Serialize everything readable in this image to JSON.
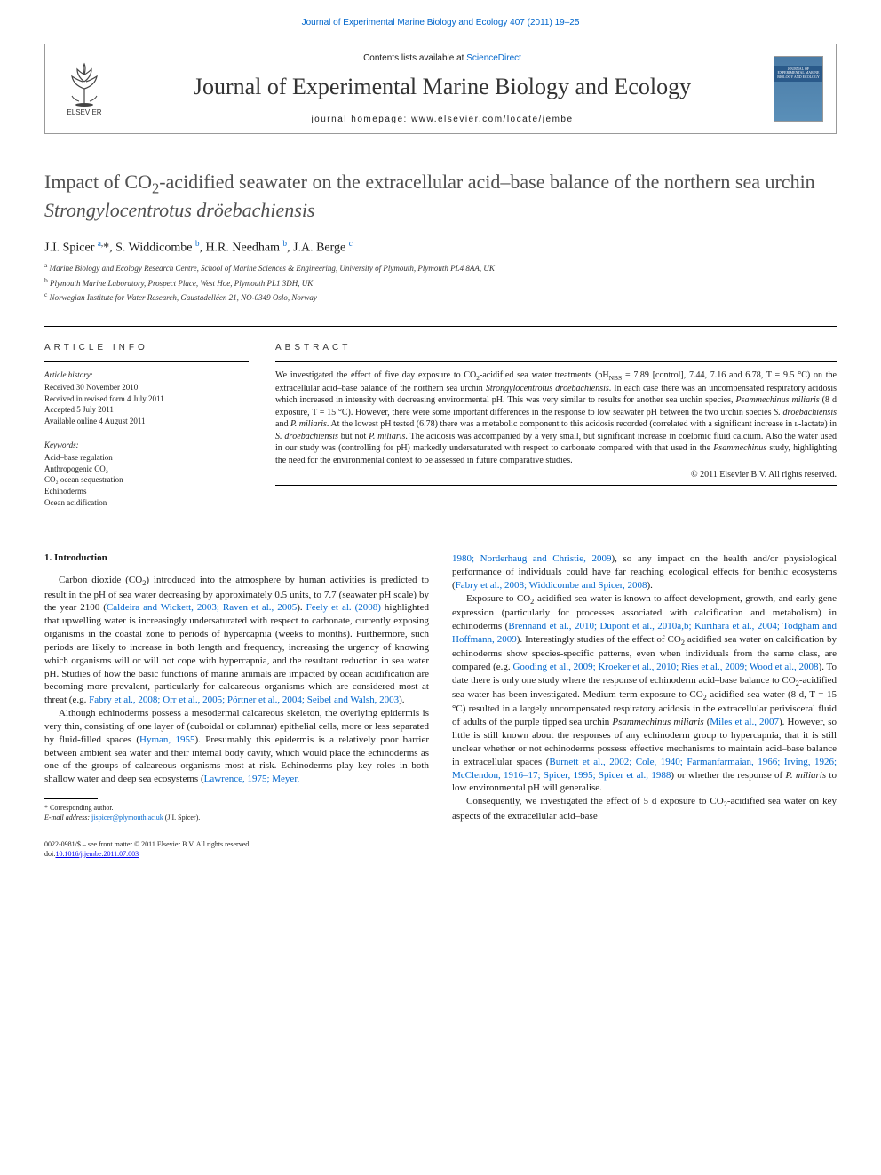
{
  "topLink": "Journal of Experimental Marine Biology and Ecology 407 (2011) 19–25",
  "header": {
    "contentsPrefix": "Contents lists available at ",
    "contentsLink": "ScienceDirect",
    "journalName": "Journal of Experimental Marine Biology and Ecology",
    "homepagePrefix": "journal homepage: ",
    "homepageLink": "www.elsevier.com/locate/jembe",
    "elsevierLabel": "ELSEVIER",
    "coverText": "JOURNAL OF EXPERIMENTAL MARINE BIOLOGY AND ECOLOGY"
  },
  "article": {
    "titleHtml": "Impact of CO<sub>2</sub>-acidified seawater on the extracellular acid–base balance of the northern sea urchin <em>Strongylocentrotus dröebachiensis</em>",
    "authorsHtml": "J.I. Spicer <sup><a href='#'>a</a>,</sup>*, S. Widdicombe <sup><a href='#'>b</a></sup>, H.R. Needham <sup><a href='#'>b</a></sup>, J.A. Berge <sup><a href='#'>c</a></sup>",
    "affiliations": {
      "a": "Marine Biology and Ecology Research Centre, School of Marine Sciences & Engineering, University of Plymouth, Plymouth PL4 8AA, UK",
      "b": "Plymouth Marine Laboratory, Prospect Place, West Hoe, Plymouth PL1 3DH, UK",
      "c": "Norwegian Institute for Water Research, Gaustadelléen 21, NO-0349 Oslo, Norway"
    }
  },
  "sections": {
    "articleInfoHeader": "ARTICLE INFO",
    "abstractHeader": "ABSTRACT",
    "articleHistoryLabel": "Article history:",
    "history": {
      "received": "Received 30 November 2010",
      "revised": "Received in revised form 4 July 2011",
      "accepted": "Accepted 5 July 2011",
      "online": "Available online 4 August 2011"
    },
    "keywordsLabel": "Keywords:",
    "keywords": [
      "Acid–base regulation",
      "Anthropogenic CO₂",
      "CO₂ ocean sequestration",
      "Echinoderms",
      "Ocean acidification"
    ],
    "abstractHtml": "We investigated the effect of five day exposure to CO<sub>2</sub>-acidified sea water treatments (pH<sub>NBS</sub> = 7.89 [control], 7.44, 7.16 and 6.78, T = 9.5 °C) on the extracellular acid–base balance of the northern sea urchin <em>Strongylocentrotus dröebachiensis</em>. In each case there was an uncompensated respiratory acidosis which increased in intensity with decreasing environmental pH. This was very similar to results for another sea urchin species, <em>Psammechinus miliaris</em> (8 d exposure, T = 15 °C). However, there were some important differences in the response to low seawater pH between the two urchin species <em>S. dröebachiensis</em> and <em>P. miliaris</em>. At the lowest pH tested (6.78) there was a metabolic component to this acidosis recorded (correlated with a significant increase in ʟ-lactate) in <em>S. dröebachiensis</em> but not <em>P. miliaris</em>. The acidosis was accompanied by a very small, but significant increase in coelomic fluid calcium. Also the water used in our study was (controlling for pH) markedly undersaturated with respect to carbonate compared with that used in the <em>Psammechinus</em> study, highlighting the need for the environmental context to be assessed in future comparative studies.",
    "copyright": "© 2011 Elsevier B.V. All rights reserved."
  },
  "intro": {
    "heading": "1. Introduction",
    "p1Html": "Carbon dioxide (CO<sub>2</sub>) introduced into the atmosphere by human activities is predicted to result in the pH of sea water decreasing by approximately 0.5 units, to 7.7 (seawater pH scale) by the year 2100 (<a href='#'>Caldeira and Wickett, 2003; Raven et al., 2005</a>). <a href='#'>Feely et al. (2008)</a> highlighted that upwelling water is increasingly undersaturated with respect to carbonate, currently exposing organisms in the coastal zone to periods of hypercapnia (weeks to months). Furthermore, such periods are likely to increase in both length and frequency, increasing the urgency of knowing which organisms will or will not cope with hypercapnia, and the resultant reduction in sea water pH. Studies of how the basic functions of marine animals are impacted by ocean acidification are becoming more prevalent, particularly for calcareous organisms which are considered most at threat (e.g. <a href='#'>Fabry et al., 2008; Orr et al., 2005; Pörtner et al., 2004; Seibel and Walsh, 2003</a>).",
    "p2Html": "Although echinoderms possess a mesodermal calcareous skeleton, the overlying epidermis is very thin, consisting of one layer of (cuboidal or columnar) epithelial cells, more or less separated by fluid-filled spaces (<a href='#'>Hyman, 1955</a>). Presumably this epidermis is a relatively poor barrier between ambient sea water and their internal body cavity, which would place the echinoderms as one of the groups of calcareous organisms most at risk. Echinoderms play key roles in both shallow water and deep sea ecosystems (<a href='#'>Lawrence, 1975; Meyer,</a>",
    "p3Html": "<a href='#'>1980; Norderhaug and Christie, 2009</a>), so any impact on the health and/or physiological performance of individuals could have far reaching ecological effects for benthic ecosystems (<a href='#'>Fabry et al., 2008; Widdicombe and Spicer, 2008</a>).",
    "p4Html": "Exposure to CO<sub>2</sub>-acidified sea water is known to affect development, growth, and early gene expression (particularly for processes associated with calcification and metabolism) in echinoderms (<a href='#'>Brennand et al., 2010; Dupont et al., 2010a,b; Kurihara et al., 2004; Todgham and Hoffmann, 2009</a>). Interestingly studies of the effect of CO<sub>2</sub> acidified sea water on calcification by echinoderms show species-specific patterns, even when individuals from the same class, are compared (e.g. <a href='#'>Gooding et al., 2009; Kroeker et al., 2010; Ries et al., 2009; Wood et al., 2008</a>). To date there is only one study where the response of echinoderm acid–base balance to CO<sub>2</sub>-acidified sea water has been investigated. Medium-term exposure to CO<sub>2</sub>-acidified sea water (8 d, T = 15 °C) resulted in a largely uncompensated respiratory acidosis in the extracellular perivisceral fluid of adults of the purple tipped sea urchin <em>Psammechinus miliaris</em> (<a href='#'>Miles et al., 2007</a>). However, so little is still known about the responses of any echinoderm group to hypercapnia, that it is still unclear whether or not echinoderms possess effective mechanisms to maintain acid–base balance in extracellular spaces (<a href='#'>Burnett et al., 2002; Cole, 1940; Farmanfarmaian, 1966; Irving, 1926; McClendon, 1916–17; Spicer, 1995; Spicer et al., 1988</a>) or whether the response of <em>P. miliaris</em> to low environmental pH will generalise.",
    "p5Html": "Consequently, we investigated the effect of 5 d exposure to CO<sub>2</sub>-acidified sea water on key aspects of the extracellular acid–base"
  },
  "footnote": {
    "corresponding": "* Corresponding author.",
    "emailLabel": "E-mail address: ",
    "email": "jispicer@plymouth.ac.uk",
    "emailSuffix": " (J.I. Spicer)."
  },
  "footer": {
    "issn": "0022-0981/$ – see front matter © 2011 Elsevier B.V. All rights reserved.",
    "doiLabel": "doi:",
    "doi": "10.1016/j.jembe.2011.07.003"
  },
  "colors": {
    "linkColor": "#0066cc",
    "textColor": "#1a1a1a",
    "headerGrey": "#505050"
  }
}
